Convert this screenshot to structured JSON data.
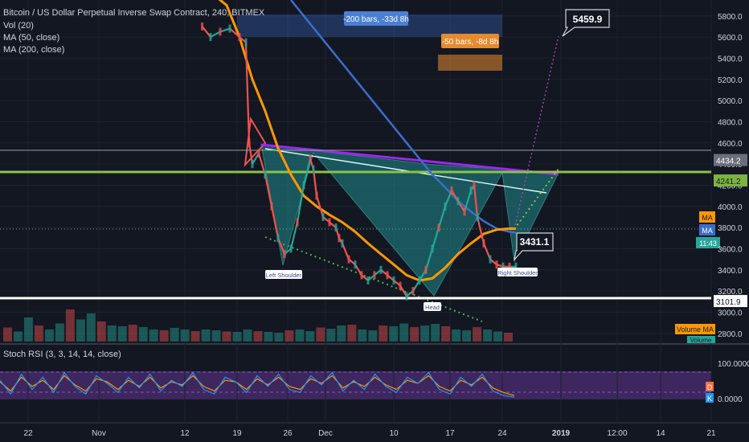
{
  "header": {
    "symbol_line": "Bitcoin / US Dollar Perpetual Inverse Swap Contract, 240, BITMEX",
    "indicators": [
      "Vol (20)",
      "MA (50, close)",
      "MA (200, close)"
    ]
  },
  "stoch_label": "Stoch RSI (3, 3, 14, 14, close)",
  "colors": {
    "background": "#131722",
    "price_up": "#26a69a",
    "price_down": "#ef5350",
    "ma50": "#ff9800",
    "ma200": "#3d6dcc",
    "neckline": "#9c27f0",
    "pattern_fill": "#1e8c8c",
    "support_white": "#ffffff",
    "resistance_green": "#8bc34a",
    "stoch_bg": "#4a2a6e",
    "stoch_k": "#2196f3",
    "stoch_d": "#ff9800"
  },
  "annotations": {
    "bars_200": "-200 bars, -33d 8h",
    "bars_50": "-50 bars, -8d 8h",
    "target": "5459.9",
    "current": "3431.1",
    "left_shoulder": "Left Shoulder",
    "head": "Head",
    "right_shoulder": "Right Shoulder"
  },
  "chart_data": {
    "type": "line",
    "price_axis": {
      "range": [
        2700,
        5950
      ],
      "ticks": [
        2800,
        3000,
        3200,
        3400,
        3600,
        3800,
        4000,
        4200,
        4400,
        4600,
        4800,
        5000,
        5200,
        5400,
        5600,
        5800
      ],
      "tick_labels": [
        "2800.0",
        "3000.0",
        "3200.0",
        "3400.0",
        "3600.0",
        "3800.0",
        "4000.0",
        "4200.0",
        "4400.0",
        "4600.0",
        "4800.0",
        "5000.0",
        "5200.0",
        "5400.0",
        "5600.0",
        "5800.0"
      ],
      "level_labels": [
        {
          "value": 4434.2,
          "text": "4434.2"
        },
        {
          "value": 4241.2,
          "text": "4241.2"
        },
        {
          "value": 3101.9,
          "text": "3101.9"
        }
      ],
      "badges": [
        "MA",
        "MA",
        "11:43",
        "Volume MA",
        "Volume"
      ]
    },
    "time_axis": {
      "labels": [
        "22",
        "Nov",
        "12",
        "19",
        "26",
        "Dec",
        "10",
        "17",
        "24",
        "2019",
        "12:00",
        "14",
        "21"
      ]
    },
    "stoch_axis": {
      "ticks": [
        100,
        0
      ],
      "tick_labels": [
        "100.0000",
        "0.0000"
      ],
      "badges": [
        "D",
        "K"
      ]
    },
    "price_series": {
      "name": "Price",
      "x": [
        0.2,
        1.5,
        3,
        4.5,
        6,
        7,
        7.5,
        8,
        9,
        10,
        11,
        12,
        13,
        14,
        15,
        16,
        17,
        17.5,
        18,
        19,
        20,
        21,
        21.5,
        22,
        23,
        24,
        25,
        26,
        27,
        28,
        29,
        30,
        31,
        32,
        33,
        34,
        35,
        36,
        37,
        38,
        39,
        40,
        41,
        42,
        42.5,
        43,
        44,
        45,
        46,
        47,
        48,
        49
      ],
      "values": [
        5700,
        5600,
        5650,
        5680,
        5600,
        5550,
        4600,
        4400,
        4500,
        4300,
        4000,
        3700,
        3550,
        3600,
        3850,
        4200,
        4450,
        4350,
        4100,
        3900,
        3850,
        3800,
        3700,
        3650,
        3500,
        3450,
        3350,
        3300,
        3350,
        3400,
        3350,
        3300,
        3250,
        3150,
        3200,
        3300,
        3400,
        3600,
        3800,
        4000,
        4150,
        4050,
        3950,
        4150,
        4200,
        3900,
        3650,
        3500,
        3450,
        3431,
        3430,
        3431
      ]
    },
    "ma50_series": {
      "name": "MA (50, close)",
      "x": [
        2,
        4,
        6,
        8,
        10,
        12,
        14,
        16,
        18,
        20,
        22,
        24,
        26,
        28,
        30,
        32,
        34,
        36,
        38,
        40,
        42,
        44,
        46,
        48,
        49
      ],
      "values": [
        6000,
        5900,
        5600,
        5200,
        4900,
        4550,
        4300,
        4100,
        4000,
        3920,
        3850,
        3760,
        3650,
        3550,
        3450,
        3350,
        3300,
        3320,
        3420,
        3550,
        3650,
        3740,
        3780,
        3790,
        3790
      ]
    },
    "ma200_series": {
      "name": "MA (200, close)",
      "x": [
        14,
        16,
        18,
        20,
        22,
        24,
        26,
        28,
        30,
        32,
        34,
        36,
        38,
        40,
        42,
        44,
        46,
        48,
        49
      ],
      "values": [
        5950,
        5800,
        5650,
        5500,
        5350,
        5200,
        5050,
        4900,
        4750,
        4600,
        4450,
        4300,
        4180,
        4050,
        3950,
        3860,
        3790,
        3760,
        3750
      ]
    },
    "volume_values": [
      35,
      25,
      60,
      40,
      30,
      45,
      80,
      55,
      70,
      50,
      40,
      38,
      42,
      36,
      30,
      28,
      34,
      30,
      26,
      30,
      28,
      25,
      24,
      30,
      26,
      24,
      22,
      28,
      30,
      26,
      35,
      32,
      40,
      42,
      30,
      28,
      40,
      38,
      45,
      36,
      40,
      44,
      38,
      30,
      28,
      36,
      30,
      25,
      22
    ],
    "stoch_k": [
      60,
      15,
      80,
      30,
      70,
      20,
      85,
      40,
      15,
      75,
      50,
      20,
      70,
      35,
      80,
      25,
      60,
      40,
      85,
      30,
      15,
      70,
      55,
      20,
      75,
      40,
      80,
      30,
      20,
      75,
      45,
      85,
      25,
      60,
      30,
      80,
      40,
      20,
      70,
      50,
      85,
      30,
      15,
      70,
      40,
      80,
      25,
      10,
      5
    ],
    "stoch_d": [
      55,
      25,
      70,
      40,
      60,
      30,
      75,
      45,
      25,
      65,
      55,
      30,
      60,
      40,
      70,
      35,
      55,
      45,
      75,
      40,
      25,
      60,
      55,
      30,
      65,
      45,
      70,
      40,
      30,
      65,
      50,
      75,
      35,
      55,
      40,
      70,
      45,
      30,
      60,
      50,
      75,
      40,
      25,
      60,
      45,
      70,
      35,
      20,
      10
    ]
  }
}
